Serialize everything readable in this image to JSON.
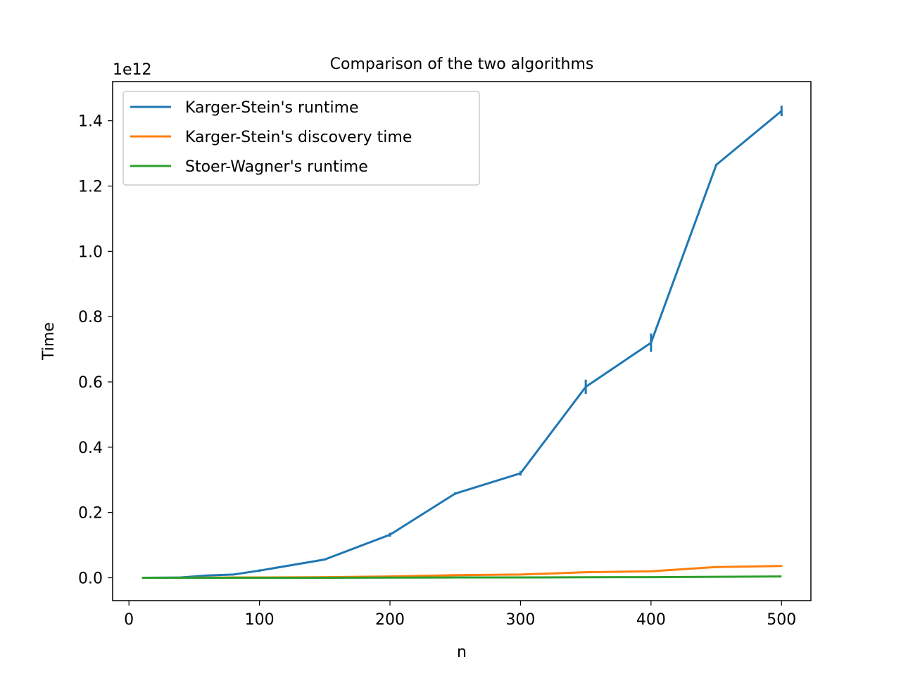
{
  "chart_data": {
    "type": "line",
    "title": "Comparison of the two algorithms",
    "xlabel": "n",
    "ylabel": "Time",
    "y_offset_text": "1e12",
    "y_scale_factor": 1000000000000.0,
    "xlim": [
      -12.5,
      522.5
    ],
    "ylim": [
      -0.07,
      1.52
    ],
    "xticks": [
      0,
      100,
      200,
      300,
      400,
      500
    ],
    "xtick_labels": [
      "0",
      "100",
      "200",
      "300",
      "400",
      "500"
    ],
    "yticks": [
      0.0,
      0.2,
      0.4,
      0.6,
      0.8,
      1.0,
      1.2,
      1.4
    ],
    "ytick_labels": [
      "0.0",
      "0.2",
      "0.4",
      "0.6",
      "0.8",
      "1.0",
      "1.2",
      "1.4"
    ],
    "grid": false,
    "legend_position": "upper-left",
    "series": [
      {
        "name": "Karger-Stein's runtime",
        "color": "#1f77b4",
        "x": [
          10,
          40,
          60,
          80,
          100,
          150,
          200,
          250,
          300,
          350,
          400,
          450,
          500
        ],
        "y": [
          0.0,
          0.001,
          0.007,
          0.01,
          0.022,
          0.056,
          0.132,
          0.258,
          0.32,
          0.585,
          0.72,
          1.265,
          1.43
        ],
        "error": [
          0.0,
          0.0,
          0.002,
          0.003,
          0.004,
          0.003,
          0.006,
          0.004,
          0.007,
          0.022,
          0.028,
          0.003,
          0.016
        ]
      },
      {
        "name": "Karger-Stein's discovery time",
        "color": "#ff7f0e",
        "x": [
          10,
          40,
          60,
          80,
          100,
          150,
          200,
          250,
          300,
          350,
          400,
          450,
          500
        ],
        "y": [
          0.0,
          0.0,
          0.0005,
          0.001,
          0.001,
          0.002,
          0.004,
          0.008,
          0.01,
          0.017,
          0.02,
          0.033,
          0.036
        ],
        "error": [
          0.0,
          0.0,
          0.0,
          0.0,
          0.0,
          0.0,
          0.0,
          0.0,
          0.0,
          0.001,
          0.001,
          0.001,
          0.002
        ]
      },
      {
        "name": "Stoer-Wagner's runtime",
        "color": "#2ca02c",
        "x": [
          10,
          40,
          60,
          80,
          100,
          150,
          200,
          250,
          300,
          350,
          400,
          450,
          500
        ],
        "y": [
          0.0,
          0.0,
          0.0,
          0.0,
          0.0,
          0.0,
          0.0005,
          0.001,
          0.001,
          0.0015,
          0.002,
          0.003,
          0.004
        ],
        "error": [
          0.0,
          0.0,
          0.0,
          0.0,
          0.0,
          0.0,
          0.0,
          0.0,
          0.0,
          0.0,
          0.0,
          0.0,
          0.0
        ]
      }
    ]
  }
}
